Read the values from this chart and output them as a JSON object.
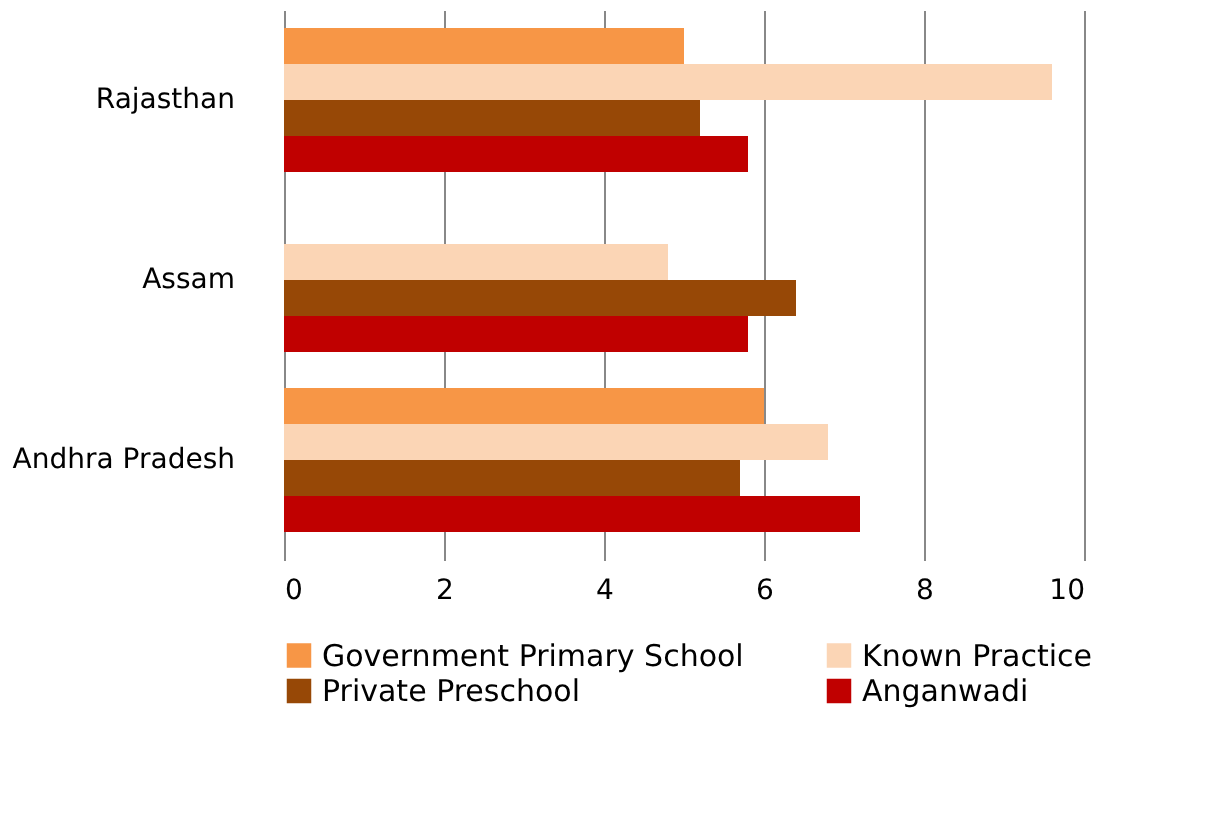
{
  "chart_data": {
    "type": "bar",
    "orientation": "horizontal",
    "categories": [
      "Rajasthan",
      "Assam",
      "Andhra Pradesh"
    ],
    "series": [
      {
        "name": "Government Primary School",
        "color": "#f79646",
        "values": [
          5.0,
          null,
          6.0
        ]
      },
      {
        "name": "Known Practice",
        "color": "#fbd5b5",
        "values": [
          9.6,
          4.8,
          6.8
        ]
      },
      {
        "name": "Private Preschool",
        "color": "#974806",
        "values": [
          5.2,
          6.4,
          5.7
        ]
      },
      {
        "name": "Anganwadi",
        "color": "#c00000",
        "values": [
          5.8,
          5.8,
          7.2
        ]
      }
    ],
    "xlim": [
      0,
      10
    ],
    "xticks": [
      0,
      2,
      4,
      6,
      8,
      10
    ],
    "grid": "x",
    "legend": "bottom"
  }
}
